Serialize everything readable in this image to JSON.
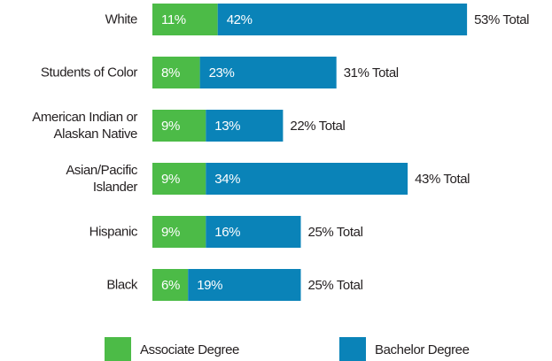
{
  "chart_data": {
    "type": "stacked_bar_horizontal",
    "categories": [
      "White",
      "Students of Color",
      "American Indian or\nAlaskan Native",
      "Asian/Pacific\nIslander",
      "Hispanic",
      "Black"
    ],
    "series": [
      {
        "name": "Associate Degree",
        "color": "#4cbb47",
        "values": [
          11,
          8,
          9,
          9,
          9,
          6
        ],
        "value_labels": [
          "11%",
          "8%",
          "9%",
          "9%",
          "9%",
          "6%"
        ]
      },
      {
        "name": "Bachelor Degree",
        "color": "#0a83b8",
        "values": [
          42,
          23,
          13,
          34,
          16,
          19
        ],
        "value_labels": [
          "42%",
          "23%",
          "13%",
          "34%",
          "16%",
          "19%"
        ]
      }
    ],
    "totals": [
      53,
      31,
      22,
      43,
      25,
      25
    ],
    "total_labels": [
      "53% Total",
      "31% Total",
      "22% Total",
      "43% Total",
      "25% Total",
      "25% Total"
    ],
    "legend": "bottom"
  }
}
